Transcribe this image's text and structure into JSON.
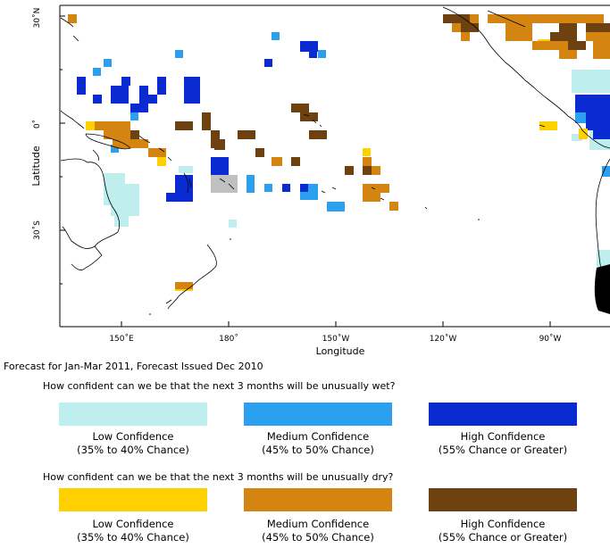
{
  "map": {
    "y_axis_label": "Latitude",
    "x_axis_label": "Longitude",
    "lat_ticks": [
      "30˚N",
      "0˚",
      "30˚S"
    ],
    "lon_ticks": [
      "150˚E",
      "180˚",
      "150˚W",
      "120˚W",
      "90˚W"
    ]
  },
  "caption": "Forecast for Jan-Mar 2011, Forecast Issued Dec 2010",
  "wet": {
    "question": "How confident can we be that the next 3 months will be unusually wet?",
    "items": [
      {
        "title": "Low Confidence",
        "range": "(35% to 40% Chance)",
        "color": "#bfeeee"
      },
      {
        "title": "Medium Confidence",
        "range": "(45% to 50% Chance)",
        "color": "#2aa0ee"
      },
      {
        "title": "High Confidence",
        "range": "(55% Chance or Greater)",
        "color": "#0a2ad2"
      }
    ]
  },
  "dry": {
    "question": "How confident can we be that the next 3 months will be unusually dry?",
    "items": [
      {
        "title": "Low Confidence",
        "range": "(35% to 40% Chance)",
        "color": "#ffd000"
      },
      {
        "title": "Medium Confidence",
        "range": "(45% to 50% Chance)",
        "color": "#d48410"
      },
      {
        "title": "High Confidence",
        "range": "(55% Chance or Greater)",
        "color": "#6e4210"
      }
    ]
  },
  "extra_colors": {
    "gray": "#c0c0c0"
  }
}
